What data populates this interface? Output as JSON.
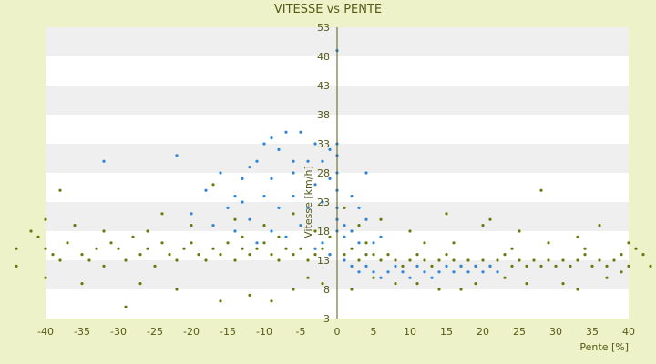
{
  "chart_data": {
    "type": "scatter",
    "title": "VITESSE vs PENTE",
    "xlabel": "Pente [%]",
    "ylabel": "Vitesse [km/h]",
    "xlim": [
      -40,
      40
    ],
    "ylim": [
      3,
      53
    ],
    "x_ticks": [
      -40,
      -35,
      -30,
      -25,
      -20,
      -15,
      -10,
      -5,
      0,
      5,
      10,
      15,
      20,
      25,
      30,
      35,
      40
    ],
    "y_ticks": [
      3,
      8,
      13,
      18,
      23,
      28,
      33,
      38,
      43,
      48,
      53
    ],
    "grid": "horizontal alternating bands",
    "legend": "none",
    "colors": {
      "background": "#eef2c8",
      "plot_band_light": "#ffffff",
      "plot_band_dark": "#efefef",
      "series_olive": "#6b7a0f",
      "series_blue": "#2f86d6",
      "text": "#555a16"
    },
    "series": [
      {
        "color": "#6b7a0f",
        "points": [
          [
            -44,
            15
          ],
          [
            -41,
            17
          ],
          [
            -40,
            15
          ],
          [
            -39,
            14
          ],
          [
            -38,
            13
          ],
          [
            -37,
            16
          ],
          [
            -35,
            14
          ],
          [
            -34,
            13
          ],
          [
            -33,
            15
          ],
          [
            -32,
            12
          ],
          [
            -31,
            16
          ],
          [
            -30,
            15
          ],
          [
            -29,
            13
          ],
          [
            -28,
            17
          ],
          [
            -27,
            14
          ],
          [
            -26,
            15
          ],
          [
            -25,
            12
          ],
          [
            -24,
            16
          ],
          [
            -23,
            14
          ],
          [
            -22,
            13
          ],
          [
            -21,
            15
          ],
          [
            -20,
            16
          ],
          [
            -19,
            14
          ],
          [
            -18,
            13
          ],
          [
            -17,
            15
          ],
          [
            -16,
            14
          ],
          [
            -15,
            16
          ],
          [
            -14,
            13
          ],
          [
            -13,
            15
          ],
          [
            -12,
            14
          ],
          [
            -11,
            15
          ],
          [
            -10,
            16
          ],
          [
            -9,
            14
          ],
          [
            -8,
            13
          ],
          [
            -7,
            15
          ],
          [
            -6,
            14
          ],
          [
            -5,
            15
          ],
          [
            -4,
            13
          ],
          [
            -3,
            14
          ],
          [
            -2,
            15
          ],
          [
            -1,
            14
          ],
          [
            1,
            14
          ],
          [
            2,
            15
          ],
          [
            3,
            13
          ],
          [
            4,
            14
          ],
          [
            5,
            14
          ],
          [
            6,
            13
          ],
          [
            7,
            14
          ],
          [
            8,
            13
          ],
          [
            9,
            12
          ],
          [
            10,
            13
          ],
          [
            11,
            14
          ],
          [
            12,
            13
          ],
          [
            13,
            12
          ],
          [
            14,
            13
          ],
          [
            15,
            14
          ],
          [
            16,
            13
          ],
          [
            17,
            12
          ],
          [
            18,
            13
          ],
          [
            19,
            12
          ],
          [
            20,
            13
          ],
          [
            21,
            12
          ],
          [
            22,
            13
          ],
          [
            23,
            14
          ],
          [
            24,
            12
          ],
          [
            25,
            13
          ],
          [
            26,
            12
          ],
          [
            27,
            13
          ],
          [
            28,
            12
          ],
          [
            29,
            13
          ],
          [
            30,
            12
          ],
          [
            31,
            13
          ],
          [
            32,
            12
          ],
          [
            33,
            13
          ],
          [
            34,
            14
          ],
          [
            35,
            12
          ],
          [
            36,
            13
          ],
          [
            37,
            12
          ],
          [
            38,
            13
          ],
          [
            39,
            14
          ],
          [
            40,
            12
          ],
          [
            41,
            15
          ],
          [
            42,
            14
          ],
          [
            43,
            12
          ],
          [
            -38,
            25
          ],
          [
            -40,
            20
          ],
          [
            -36,
            19
          ],
          [
            -32,
            18
          ],
          [
            -24,
            21
          ],
          [
            -20,
            19
          ],
          [
            -17,
            26
          ],
          [
            -14,
            20
          ],
          [
            -10,
            19
          ],
          [
            -6,
            21
          ],
          [
            -3,
            18
          ],
          [
            1,
            22
          ],
          [
            3,
            19
          ],
          [
            6,
            20
          ],
          [
            10,
            18
          ],
          [
            15,
            21
          ],
          [
            20,
            19
          ],
          [
            21,
            20
          ],
          [
            25,
            18
          ],
          [
            28,
            25
          ],
          [
            33,
            17
          ],
          [
            36,
            19
          ],
          [
            40,
            16
          ],
          [
            -22,
            8
          ],
          [
            -16,
            6
          ],
          [
            -29,
            5
          ],
          [
            -35,
            9
          ],
          [
            -12,
            7
          ],
          [
            -6,
            8
          ],
          [
            -2,
            9
          ],
          [
            2,
            8
          ],
          [
            8,
            9
          ],
          [
            14,
            8
          ],
          [
            19,
            9
          ],
          [
            26,
            9
          ],
          [
            33,
            8
          ],
          [
            37,
            10
          ],
          [
            -40,
            10
          ],
          [
            -44,
            12
          ],
          [
            -42,
            18
          ],
          [
            -27,
            9
          ],
          [
            -9,
            6
          ],
          [
            -4,
            10
          ],
          [
            5,
            10
          ],
          [
            11,
            9
          ],
          [
            17,
            8
          ],
          [
            23,
            10
          ],
          [
            31,
            9
          ],
          [
            39,
            11
          ],
          [
            -13,
            17
          ],
          [
            -8,
            17
          ],
          [
            -1,
            17
          ],
          [
            4,
            16
          ],
          [
            12,
            16
          ],
          [
            16,
            16
          ],
          [
            24,
            15
          ],
          [
            29,
            16
          ],
          [
            34,
            15
          ],
          [
            -26,
            18
          ]
        ]
      },
      {
        "color": "#2f86d6",
        "points": [
          [
            -32,
            30
          ],
          [
            -22,
            31
          ],
          [
            -18,
            25
          ],
          [
            -16,
            28
          ],
          [
            -15,
            22
          ],
          [
            -14,
            24
          ],
          [
            -13,
            27
          ],
          [
            -12,
            29
          ],
          [
            -11,
            30
          ],
          [
            -10,
            33
          ],
          [
            -9,
            34
          ],
          [
            -8,
            32
          ],
          [
            -7,
            35
          ],
          [
            -6,
            28
          ],
          [
            -5,
            35
          ],
          [
            -4,
            30
          ],
          [
            -3,
            33
          ],
          [
            -2,
            30
          ],
          [
            -1,
            32
          ],
          [
            -1,
            27
          ],
          [
            0,
            49
          ],
          [
            0,
            33
          ],
          [
            0,
            31
          ],
          [
            0,
            28
          ],
          [
            0,
            25
          ],
          [
            0,
            22
          ],
          [
            0,
            20
          ],
          [
            0,
            18
          ],
          [
            1,
            17
          ],
          [
            1,
            19
          ],
          [
            2,
            24
          ],
          [
            2,
            18
          ],
          [
            3,
            22
          ],
          [
            3,
            16
          ],
          [
            4,
            28
          ],
          [
            4,
            20
          ],
          [
            5,
            16
          ],
          [
            6,
            17
          ],
          [
            -12,
            20
          ],
          [
            -10,
            24
          ],
          [
            -8,
            22
          ],
          [
            -6,
            24
          ],
          [
            -4,
            22
          ],
          [
            -3,
            26
          ],
          [
            -2,
            23
          ],
          [
            -14,
            18
          ],
          [
            -11,
            16
          ],
          [
            -9,
            18
          ],
          [
            -7,
            17
          ],
          [
            -5,
            19
          ],
          [
            -3,
            15
          ],
          [
            -2,
            16
          ],
          [
            -1,
            14
          ],
          [
            1,
            13
          ],
          [
            2,
            12
          ],
          [
            3,
            11
          ],
          [
            4,
            12
          ],
          [
            5,
            11
          ],
          [
            6,
            10
          ],
          [
            7,
            11
          ],
          [
            8,
            12
          ],
          [
            9,
            11
          ],
          [
            10,
            10
          ],
          [
            11,
            12
          ],
          [
            12,
            11
          ],
          [
            13,
            10
          ],
          [
            14,
            11
          ],
          [
            15,
            12
          ],
          [
            16,
            11
          ],
          [
            17,
            12
          ],
          [
            18,
            11
          ],
          [
            19,
            12
          ],
          [
            20,
            11
          ],
          [
            21,
            12
          ],
          [
            22,
            11
          ],
          [
            -20,
            21
          ],
          [
            -17,
            19
          ],
          [
            -6,
            30
          ],
          [
            -9,
            27
          ],
          [
            -13,
            23
          ]
        ]
      }
    ]
  }
}
